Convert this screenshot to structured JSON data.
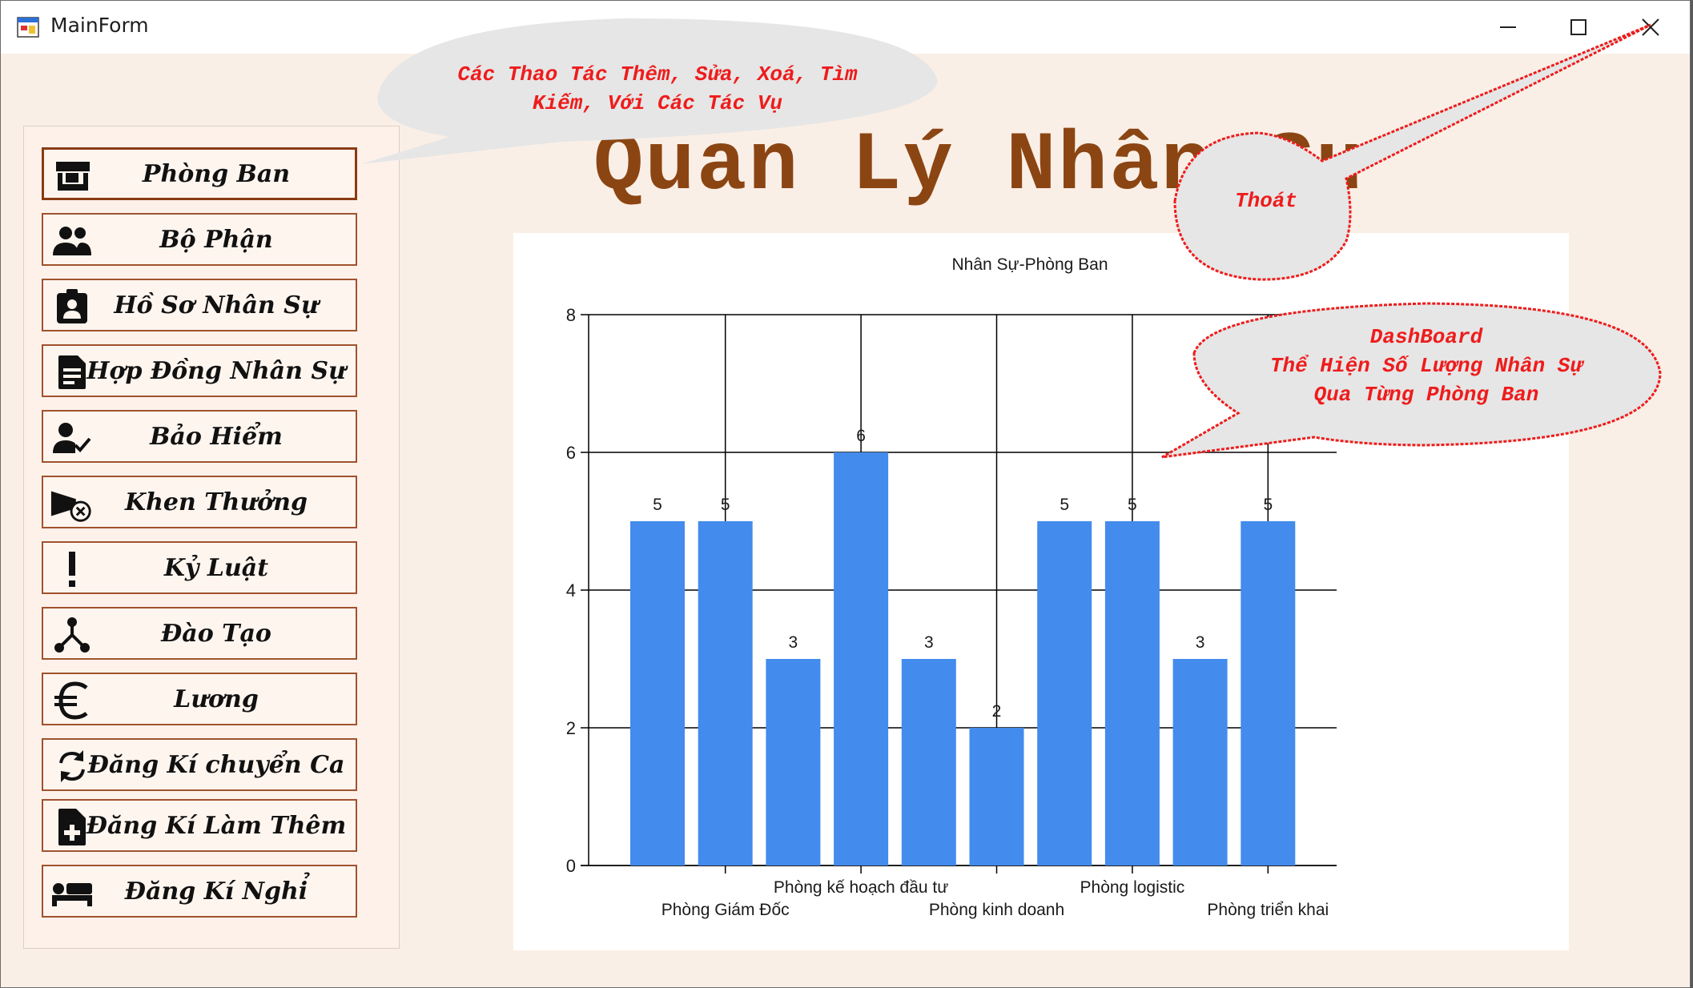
{
  "window": {
    "title": "MainForm",
    "icons": {
      "app": "app-form-icon",
      "minimize": "minimize-icon",
      "maximize": "maximize-icon",
      "close": "close-icon"
    }
  },
  "header": {
    "title": "Quan Lý Nhân Sự"
  },
  "sidebar": {
    "items": [
      {
        "label": "Phòng Ban",
        "icon": "store-icon",
        "active": true
      },
      {
        "label": "Bộ Phận",
        "icon": "group-icon"
      },
      {
        "label": "Hồ Sơ Nhân Sự",
        "icon": "id-badge-icon"
      },
      {
        "label": "Hợp Đồng Nhân Sự",
        "icon": "document-icon"
      },
      {
        "label": "Bảo Hiểm",
        "icon": "user-check-icon"
      },
      {
        "label": "Khen Thưởng",
        "icon": "megaphone-icon"
      },
      {
        "label": "Kỷ Luật",
        "icon": "exclamation-icon"
      },
      {
        "label": "Đào Tạo",
        "icon": "branch-icon"
      },
      {
        "label": "Lương",
        "icon": "euro-icon"
      },
      {
        "label": "Đăng Kí chuyển Ca",
        "icon": "sync-icon"
      },
      {
        "label": "Đăng Kí Làm Thêm",
        "icon": "file-add-icon"
      },
      {
        "label": "Đăng Kí Nghỉ",
        "icon": "bed-icon"
      }
    ]
  },
  "callouts": {
    "actions": {
      "line1": "Các Thao Tác Thêm, Sửa, Xoá, Tìm",
      "line2": "Kiếm, Với Các Tác Vụ"
    },
    "exit": {
      "text": "Thoát"
    },
    "dashboard": {
      "line1": "DashBoard",
      "line2": "Thể Hiện Số Lượng Nhân Sự",
      "line3": "Qua Từng Phòng Ban"
    }
  },
  "colors": {
    "bar": "#438bec",
    "accent": "#8b4513",
    "callout_text": "#ee1c1c",
    "callout_fill": "#e6e6e6"
  },
  "chart_data": {
    "type": "bar",
    "title": "Nhân Sự-Phòng Ban",
    "xlabel": "",
    "ylabel": "",
    "ylim": [
      0,
      8
    ],
    "yticks": [
      0,
      2,
      4,
      6,
      8
    ],
    "grid": true,
    "legend_position": "top-right",
    "categories": [
      "",
      "Phòng Giám Đốc",
      "",
      "Phòng kế hoạch đầu tư",
      "",
      "Phòng kinh doanh",
      "",
      "Phòng logistic",
      "",
      "Phòng triển khai"
    ],
    "series": [
      {
        "values": [
          5,
          5,
          3,
          6,
          3,
          2,
          5,
          5,
          3,
          5
        ]
      }
    ],
    "data_labels": [
      "5",
      "5",
      "3",
      "6",
      "3",
      "2",
      "5",
      "5",
      "3",
      "5"
    ]
  }
}
